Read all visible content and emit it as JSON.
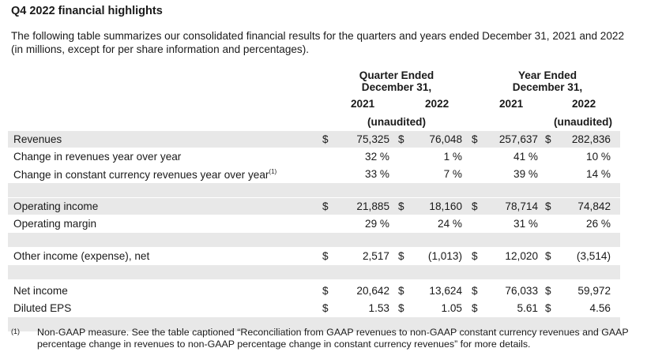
{
  "title": "Q4 2022 financial highlights",
  "intro": "The following table summarizes our consolidated financial results for the quarters and years ended December 31, 2021 and 2022 (in millions, except for per share information and percentages).",
  "groups": {
    "quarter": {
      "line1": "Quarter Ended",
      "line2": "December 31,"
    },
    "year": {
      "line1": "Year Ended",
      "line2": "December 31,"
    }
  },
  "years": {
    "q1": "2021",
    "q2": "2022",
    "y1": "2021",
    "y2": "2022"
  },
  "unaudited": {
    "quarter": "(unaudited)",
    "year": "(unaudited)"
  },
  "rows": [
    {
      "label": "Revenues",
      "sup": "",
      "d1": "$",
      "v1": "75,325",
      "d2": "$",
      "v2": "76,048",
      "d3": "$",
      "v3": "257,637",
      "d4": "$",
      "v4": "282,836"
    },
    {
      "label": "Change in revenues year over year",
      "sup": "",
      "d1": "",
      "v1": "32 %",
      "d2": "",
      "v2": "1 %",
      "d3": "",
      "v3": "41 %",
      "d4": "",
      "v4": "10 %"
    },
    {
      "label": "Change in constant currency revenues year over year",
      "sup": "(1)",
      "d1": "",
      "v1": "33 %",
      "d2": "",
      "v2": "7 %",
      "d3": "",
      "v3": "39 %",
      "d4": "",
      "v4": "14 %"
    },
    {
      "label": "Operating income",
      "sup": "",
      "d1": "$",
      "v1": "21,885",
      "d2": "$",
      "v2": "18,160",
      "d3": "$",
      "v3": "78,714",
      "d4": "$",
      "v4": "74,842"
    },
    {
      "label": "Operating margin",
      "sup": "",
      "d1": "",
      "v1": "29 %",
      "d2": "",
      "v2": "24 %",
      "d3": "",
      "v3": "31 %",
      "d4": "",
      "v4": "26 %"
    },
    {
      "label": "Other income (expense), net",
      "sup": "",
      "d1": "$",
      "v1": "2,517",
      "d2": "$",
      "v2": "(1,013)",
      "d3": "$",
      "v3": "12,020",
      "d4": "$",
      "v4": "(3,514)"
    },
    {
      "label": "Net income",
      "sup": "",
      "d1": "$",
      "v1": "20,642",
      "d2": "$",
      "v2": "13,624",
      "d3": "$",
      "v3": "76,033",
      "d4": "$",
      "v4": "59,972"
    },
    {
      "label": "Diluted EPS",
      "sup": "",
      "d1": "$",
      "v1": "1.53",
      "d2": "$",
      "v2": "1.05",
      "d3": "$",
      "v3": "5.61",
      "d4": "$",
      "v4": "4.56"
    }
  ],
  "footnote": {
    "marker": "(1)",
    "text": "Non-GAAP measure. See the table captioned “Reconciliation from GAAP revenues to non-GAAP constant currency revenues and GAAP percentage change in revenues to non-GAAP percentage change in constant currency revenues” for more details."
  },
  "colors": {
    "row_shade": "#e8e8e8",
    "text": "#1a1a1a"
  }
}
